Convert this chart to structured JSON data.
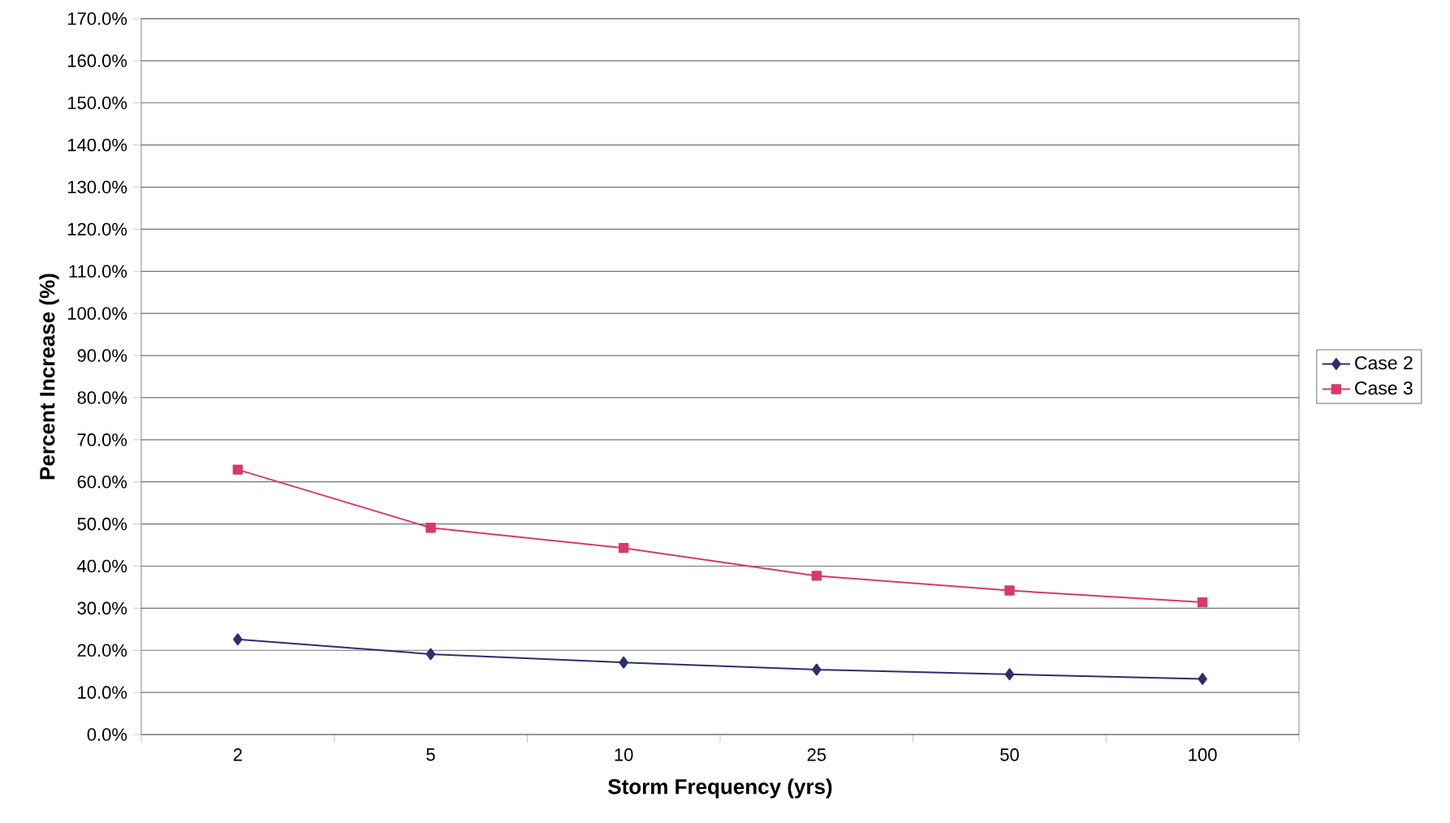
{
  "chart_data": {
    "type": "line",
    "xlabel": "Storm Frequency (yrs)",
    "ylabel": "Percent Increase (%)",
    "categories": [
      "2",
      "5",
      "10",
      "25",
      "50",
      "100"
    ],
    "series": [
      {
        "name": "Case 2",
        "color": "#2e2e6e",
        "marker": "diamond",
        "values": [
          22.6,
          19.1,
          17.1,
          15.4,
          14.3,
          13.2
        ]
      },
      {
        "name": "Case 3",
        "color": "#d83a6a",
        "marker": "square",
        "values": [
          62.9,
          49.1,
          44.3,
          37.7,
          34.2,
          31.4
        ]
      }
    ],
    "ylim": [
      0,
      170
    ],
    "yticks": [
      {
        "value": 0,
        "label": "0.0%"
      },
      {
        "value": 10,
        "label": "10.0%"
      },
      {
        "value": 20,
        "label": "20.0%"
      },
      {
        "value": 30,
        "label": "30.0%"
      },
      {
        "value": 40,
        "label": "40.0%"
      },
      {
        "value": 50,
        "label": "50.0%"
      },
      {
        "value": 60,
        "label": "60.0%"
      },
      {
        "value": 70,
        "label": "70.0%"
      },
      {
        "value": 80,
        "label": "80.0%"
      },
      {
        "value": 90,
        "label": "90.0%"
      },
      {
        "value": 100,
        "label": "100.0%"
      },
      {
        "value": 110,
        "label": "110.0%"
      },
      {
        "value": 120,
        "label": "120.0%"
      },
      {
        "value": 130,
        "label": "130.0%"
      },
      {
        "value": 140,
        "label": "140.0%"
      },
      {
        "value": 150,
        "label": "150.0%"
      },
      {
        "value": 160,
        "label": "160.0%"
      },
      {
        "value": 170,
        "label": "170.0%"
      }
    ],
    "grid": "y",
    "legend": "right",
    "line_style": "solid"
  }
}
